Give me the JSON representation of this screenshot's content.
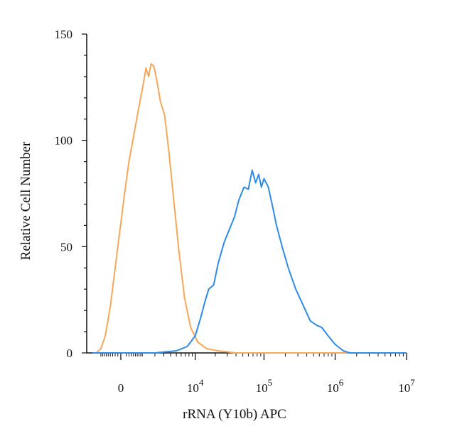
{
  "chart_data": {
    "type": "line",
    "title": "",
    "xlabel": "rRNA (Y10b) APC",
    "ylabel": "Relative Cell Number",
    "x_scale": "biexponential",
    "xlim": [
      -2000,
      10000000
    ],
    "ylim": [
      0,
      150
    ],
    "y_ticks": [
      0,
      50,
      100,
      150
    ],
    "x_ticks": [
      {
        "value": 0,
        "base": "0",
        "exp": ""
      },
      {
        "value": 10000,
        "base": "10",
        "exp": "4"
      },
      {
        "value": 100000,
        "base": "10",
        "exp": "5"
      },
      {
        "value": 1000000,
        "base": "10",
        "exp": "6"
      },
      {
        "value": 10000000,
        "base": "10",
        "exp": "7"
      }
    ],
    "grid": false,
    "series": [
      {
        "color": "#F5A85A",
        "points": [
          [
            -1200,
            0
          ],
          [
            -900,
            2
          ],
          [
            -650,
            8
          ],
          [
            -400,
            22
          ],
          [
            -150,
            45
          ],
          [
            100,
            72
          ],
          [
            300,
            90
          ],
          [
            550,
            104
          ],
          [
            800,
            116
          ],
          [
            1050,
            126
          ],
          [
            1250,
            134
          ],
          [
            1450,
            130
          ],
          [
            1650,
            136
          ],
          [
            1900,
            135
          ],
          [
            2200,
            128
          ],
          [
            2600,
            118
          ],
          [
            3100,
            112
          ],
          [
            3700,
            95
          ],
          [
            4500,
            72
          ],
          [
            5500,
            48
          ],
          [
            6800,
            26
          ],
          [
            8500,
            12
          ],
          [
            11000,
            5
          ],
          [
            15000,
            2
          ],
          [
            22000,
            1
          ],
          [
            40000,
            0
          ],
          [
            100000,
            0
          ],
          [
            1000000,
            0
          ],
          [
            10000000,
            0
          ]
        ]
      },
      {
        "color": "#2F8BE6",
        "points": [
          [
            -1500,
            0
          ],
          [
            2000,
            0
          ],
          [
            5000,
            1
          ],
          [
            7500,
            3
          ],
          [
            10000,
            8
          ],
          [
            12000,
            16
          ],
          [
            14000,
            24
          ],
          [
            16000,
            30
          ],
          [
            19000,
            32
          ],
          [
            22000,
            42
          ],
          [
            27000,
            52
          ],
          [
            32000,
            58
          ],
          [
            38000,
            64
          ],
          [
            44000,
            72
          ],
          [
            52000,
            78
          ],
          [
            60000,
            77
          ],
          [
            68000,
            86
          ],
          [
            76000,
            80
          ],
          [
            84000,
            84
          ],
          [
            92000,
            78
          ],
          [
            100000,
            82
          ],
          [
            115000,
            78
          ],
          [
            130000,
            70
          ],
          [
            150000,
            60
          ],
          [
            180000,
            50
          ],
          [
            220000,
            40
          ],
          [
            280000,
            30
          ],
          [
            360000,
            22
          ],
          [
            450000,
            15
          ],
          [
            550000,
            13
          ],
          [
            650000,
            12
          ],
          [
            800000,
            8
          ],
          [
            1000000,
            4
          ],
          [
            1300000,
            1
          ],
          [
            1600000,
            0
          ],
          [
            10000000,
            0
          ]
        ]
      }
    ]
  }
}
